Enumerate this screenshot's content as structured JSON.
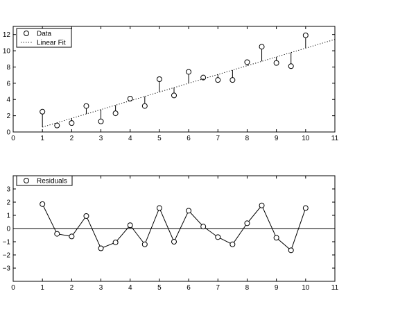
{
  "chart_data": [
    {
      "type": "scatter",
      "title": "",
      "xlabel": "",
      "ylabel": "",
      "xlim": [
        0,
        11
      ],
      "ylim": [
        0,
        13
      ],
      "xticks": [
        "0",
        "1",
        "2",
        "3",
        "4",
        "5",
        "6",
        "7",
        "8",
        "9",
        "10",
        "11"
      ],
      "yticks": [
        "0",
        "2",
        "4",
        "6",
        "8",
        "10",
        "12"
      ],
      "grid": false,
      "legend_position": "top-left",
      "series": [
        {
          "name": "Data",
          "marker": "circle",
          "x": [
            1,
            1.5,
            2,
            2.5,
            3,
            3.5,
            4,
            4.5,
            5,
            5.5,
            6,
            6.5,
            7,
            7.5,
            8,
            8.5,
            9,
            9.5,
            10
          ],
          "y": [
            2.5,
            0.8,
            1.1,
            3.2,
            1.3,
            2.3,
            4.1,
            3.2,
            6.5,
            4.5,
            7.4,
            6.7,
            6.4,
            6.4,
            8.6,
            10.5,
            8.5,
            8.1,
            11.9
          ]
        },
        {
          "name": "Linear Fit",
          "style": "dotted-line",
          "x": [
            1,
            11
          ],
          "y": [
            0.6,
            11.4
          ]
        }
      ]
    },
    {
      "type": "line",
      "title": "",
      "xlabel": "",
      "ylabel": "",
      "xlim": [
        0,
        11
      ],
      "ylim": [
        -4,
        4
      ],
      "xticks": [
        "0",
        "1",
        "2",
        "3",
        "4",
        "5",
        "6",
        "7",
        "8",
        "9",
        "10",
        "11"
      ],
      "yticks": [
        "3",
        "2",
        "1",
        "0",
        "−1",
        "−2",
        "−3"
      ],
      "grid": false,
      "legend_position": "top-left",
      "zero_line": true,
      "series": [
        {
          "name": "Residuals",
          "marker": "circle",
          "x": [
            1,
            1.5,
            2,
            2.5,
            3,
            3.5,
            4,
            4.5,
            5,
            5.5,
            6,
            6.5,
            7,
            7.5,
            8,
            8.5,
            9,
            9.5,
            10
          ],
          "y": [
            1.85,
            -0.4,
            -0.6,
            0.95,
            -1.5,
            -1.05,
            0.25,
            -1.2,
            1.55,
            -1.0,
            1.35,
            0.15,
            -0.65,
            -1.2,
            0.4,
            1.75,
            -0.7,
            -1.65,
            1.55
          ]
        }
      ]
    }
  ]
}
